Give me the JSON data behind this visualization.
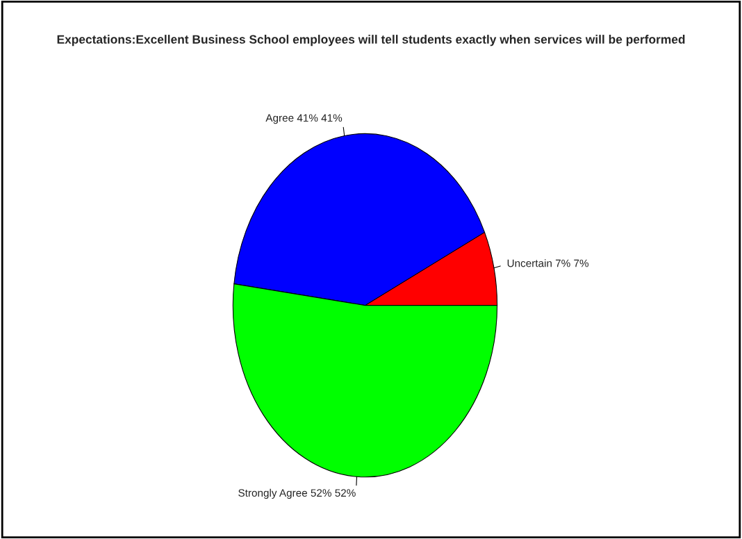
{
  "chart_data": {
    "type": "pie",
    "title": "Expectations:Excellent Business School employees will tell students exactly when services will be performed",
    "categories": [
      "Uncertain",
      "Agree",
      "Strongly Agree"
    ],
    "values": [
      7,
      41,
      52
    ],
    "value_labels": [
      "7% 7%",
      "41% 41%",
      "52% 52%"
    ],
    "colors": [
      "#ff0000",
      "#0000ff",
      "#00ff00"
    ]
  }
}
